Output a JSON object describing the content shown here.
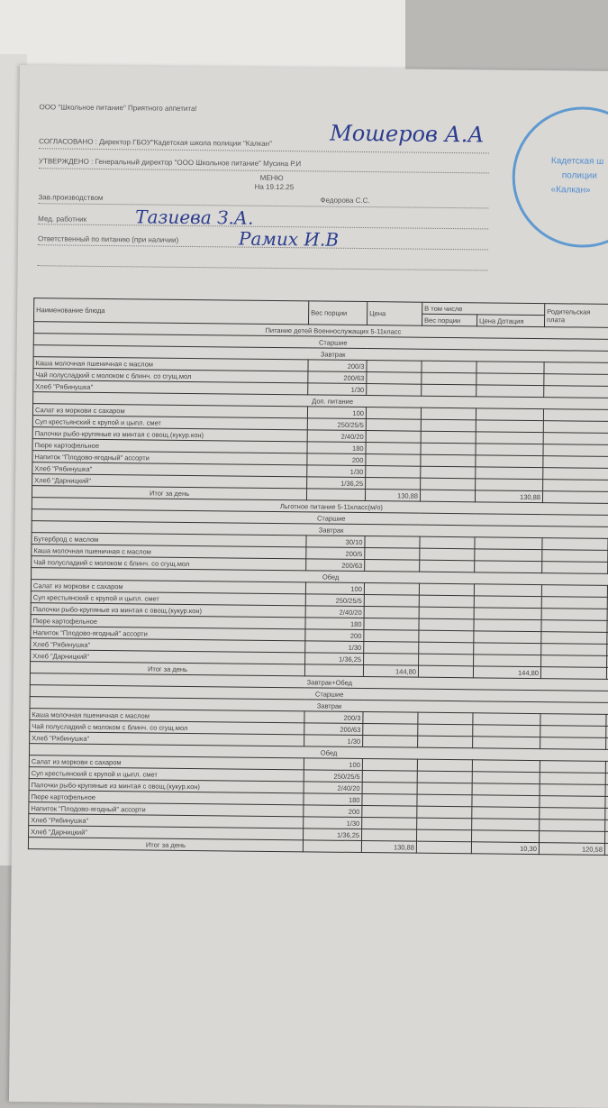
{
  "header": {
    "company": "ООО \"Школьное питание\" Приятного аппетита!",
    "agreed": "СОГЛАСОВАНО : Директор ГБОУ\"Кадетская школа полиции \"Калкан\"",
    "agreed_signature": "Мошеров А.А",
    "approved": "УТВЕРЖДЕНО : Генеральный директор \"ООО Школьное питание\" Мусина Р.И",
    "title": "МЕНЮ",
    "date": "На 19.12.25",
    "production_label": "Зав.производством",
    "production_name": "Федорова С.С.",
    "med_label": "Мед. работник",
    "med_name": "Тазиева З.А.",
    "resp_label": "Ответственный по питанию (при наличии)",
    "resp_name": "Рамих И.В",
    "stamp_text": [
      "Кадетская ш",
      "полиции",
      "«Калкан»"
    ]
  },
  "table": {
    "headers": {
      "name": "Наименование блюда",
      "weight": "Вес порции",
      "price": "Цена",
      "incl": "В том числе",
      "incl_weight": "Вес порции",
      "incl_subsidy": "Цена Дотация",
      "parent": "Родительская плата"
    },
    "sections": [
      {
        "title": "Питание детей Военнослужащих 5-11класс",
        "group": "Старшие",
        "meals": [
          {
            "name": "Завтрак",
            "items": [
              [
                "Каша молочная пшеничная с маслом",
                "200/3"
              ],
              [
                "Чай полусладкий с молоком с блинч. со сгущ.мол",
                "200/63"
              ],
              [
                "Хлеб \"Рябинушка\"",
                "1/30"
              ]
            ]
          },
          {
            "name": "Доп. питание",
            "items": [
              [
                "Салат из моркови с сахаром",
                "100"
              ],
              [
                "Суп крестьянский с крупой и цыпл. смет",
                "250/25/5"
              ],
              [
                "Палочки рыбо-крупяные из минтая с овощ.(кукур.кон)",
                "2/40/20"
              ],
              [
                "Пюре картофельное",
                "180"
              ],
              [
                "Напиток \"Плодово-ягодный\" ассорти",
                "200"
              ],
              [
                "Хлеб \"Рябинушка\"",
                "1/30"
              ],
              [
                "Хлеб \"Дарницкий\"",
                "1/36,25"
              ]
            ]
          }
        ],
        "total": {
          "label": "Итог за день",
          "price": "130,88",
          "subsidy": "130,88",
          "parent": ""
        }
      },
      {
        "title": "Льготное питание 5-11класс(м/о)",
        "group": "Старшие",
        "meals": [
          {
            "name": "Завтрак",
            "items": [
              [
                "Бутерброд с маслом",
                "30/10"
              ],
              [
                "Каша молочная пшеничная с маслом",
                "200/5"
              ],
              [
                "Чай полусладкий с молоком с блинч. со сгущ.мол",
                "200/63"
              ]
            ]
          },
          {
            "name": "Обед",
            "items": [
              [
                "Салат из моркови с сахаром",
                "100"
              ],
              [
                "Суп крестьянский с крупой и цыпл. смет",
                "250/25/5"
              ],
              [
                "Палочки рыбо-крупяные из минтая с овощ.(кукур.кон)",
                "2/40/20"
              ],
              [
                "Пюре картофельное",
                "180"
              ],
              [
                "Напиток \"Плодово-ягодный\" ассорти",
                "200"
              ],
              [
                "Хлеб \"Рябинушка\"",
                "1/30"
              ],
              [
                "Хлеб \"Дарницкий\"",
                "1/36,25"
              ]
            ]
          }
        ],
        "total": {
          "label": "Итог за день",
          "price": "144,80",
          "subsidy": "144,80",
          "parent": ""
        }
      },
      {
        "title": "Завтрак+Обед",
        "group": "Старшие",
        "meals": [
          {
            "name": "Завтрак",
            "items": [
              [
                "Каша молочная пшеничная с маслом",
                "200/3"
              ],
              [
                "Чай полусладкий с молоком с блинч. со сгущ.мол",
                "200/63"
              ],
              [
                "Хлеб \"Рябинушка\"",
                "1/30"
              ]
            ]
          },
          {
            "name": "Обед",
            "items": [
              [
                "Салат из моркови с сахаром",
                "100"
              ],
              [
                "Суп крестьянский с крупой и цыпл. смет",
                "250/25/5"
              ],
              [
                "Палочки рыбо-крупяные из минтая с овощ.(кукур.кон)",
                "2/40/20"
              ],
              [
                "Пюре картофельное",
                "180"
              ],
              [
                "Напиток \"Плодово-ягодный\" ассорти",
                "200"
              ],
              [
                "Хлеб \"Рябинушка\"",
                "1/30"
              ],
              [
                "Хлеб \"Дарницкий\"",
                "1/36,25"
              ]
            ]
          }
        ],
        "total": {
          "label": "Итог за день",
          "price": "130,88",
          "subsidy": "10,30",
          "parent": "120,58"
        }
      }
    ]
  }
}
